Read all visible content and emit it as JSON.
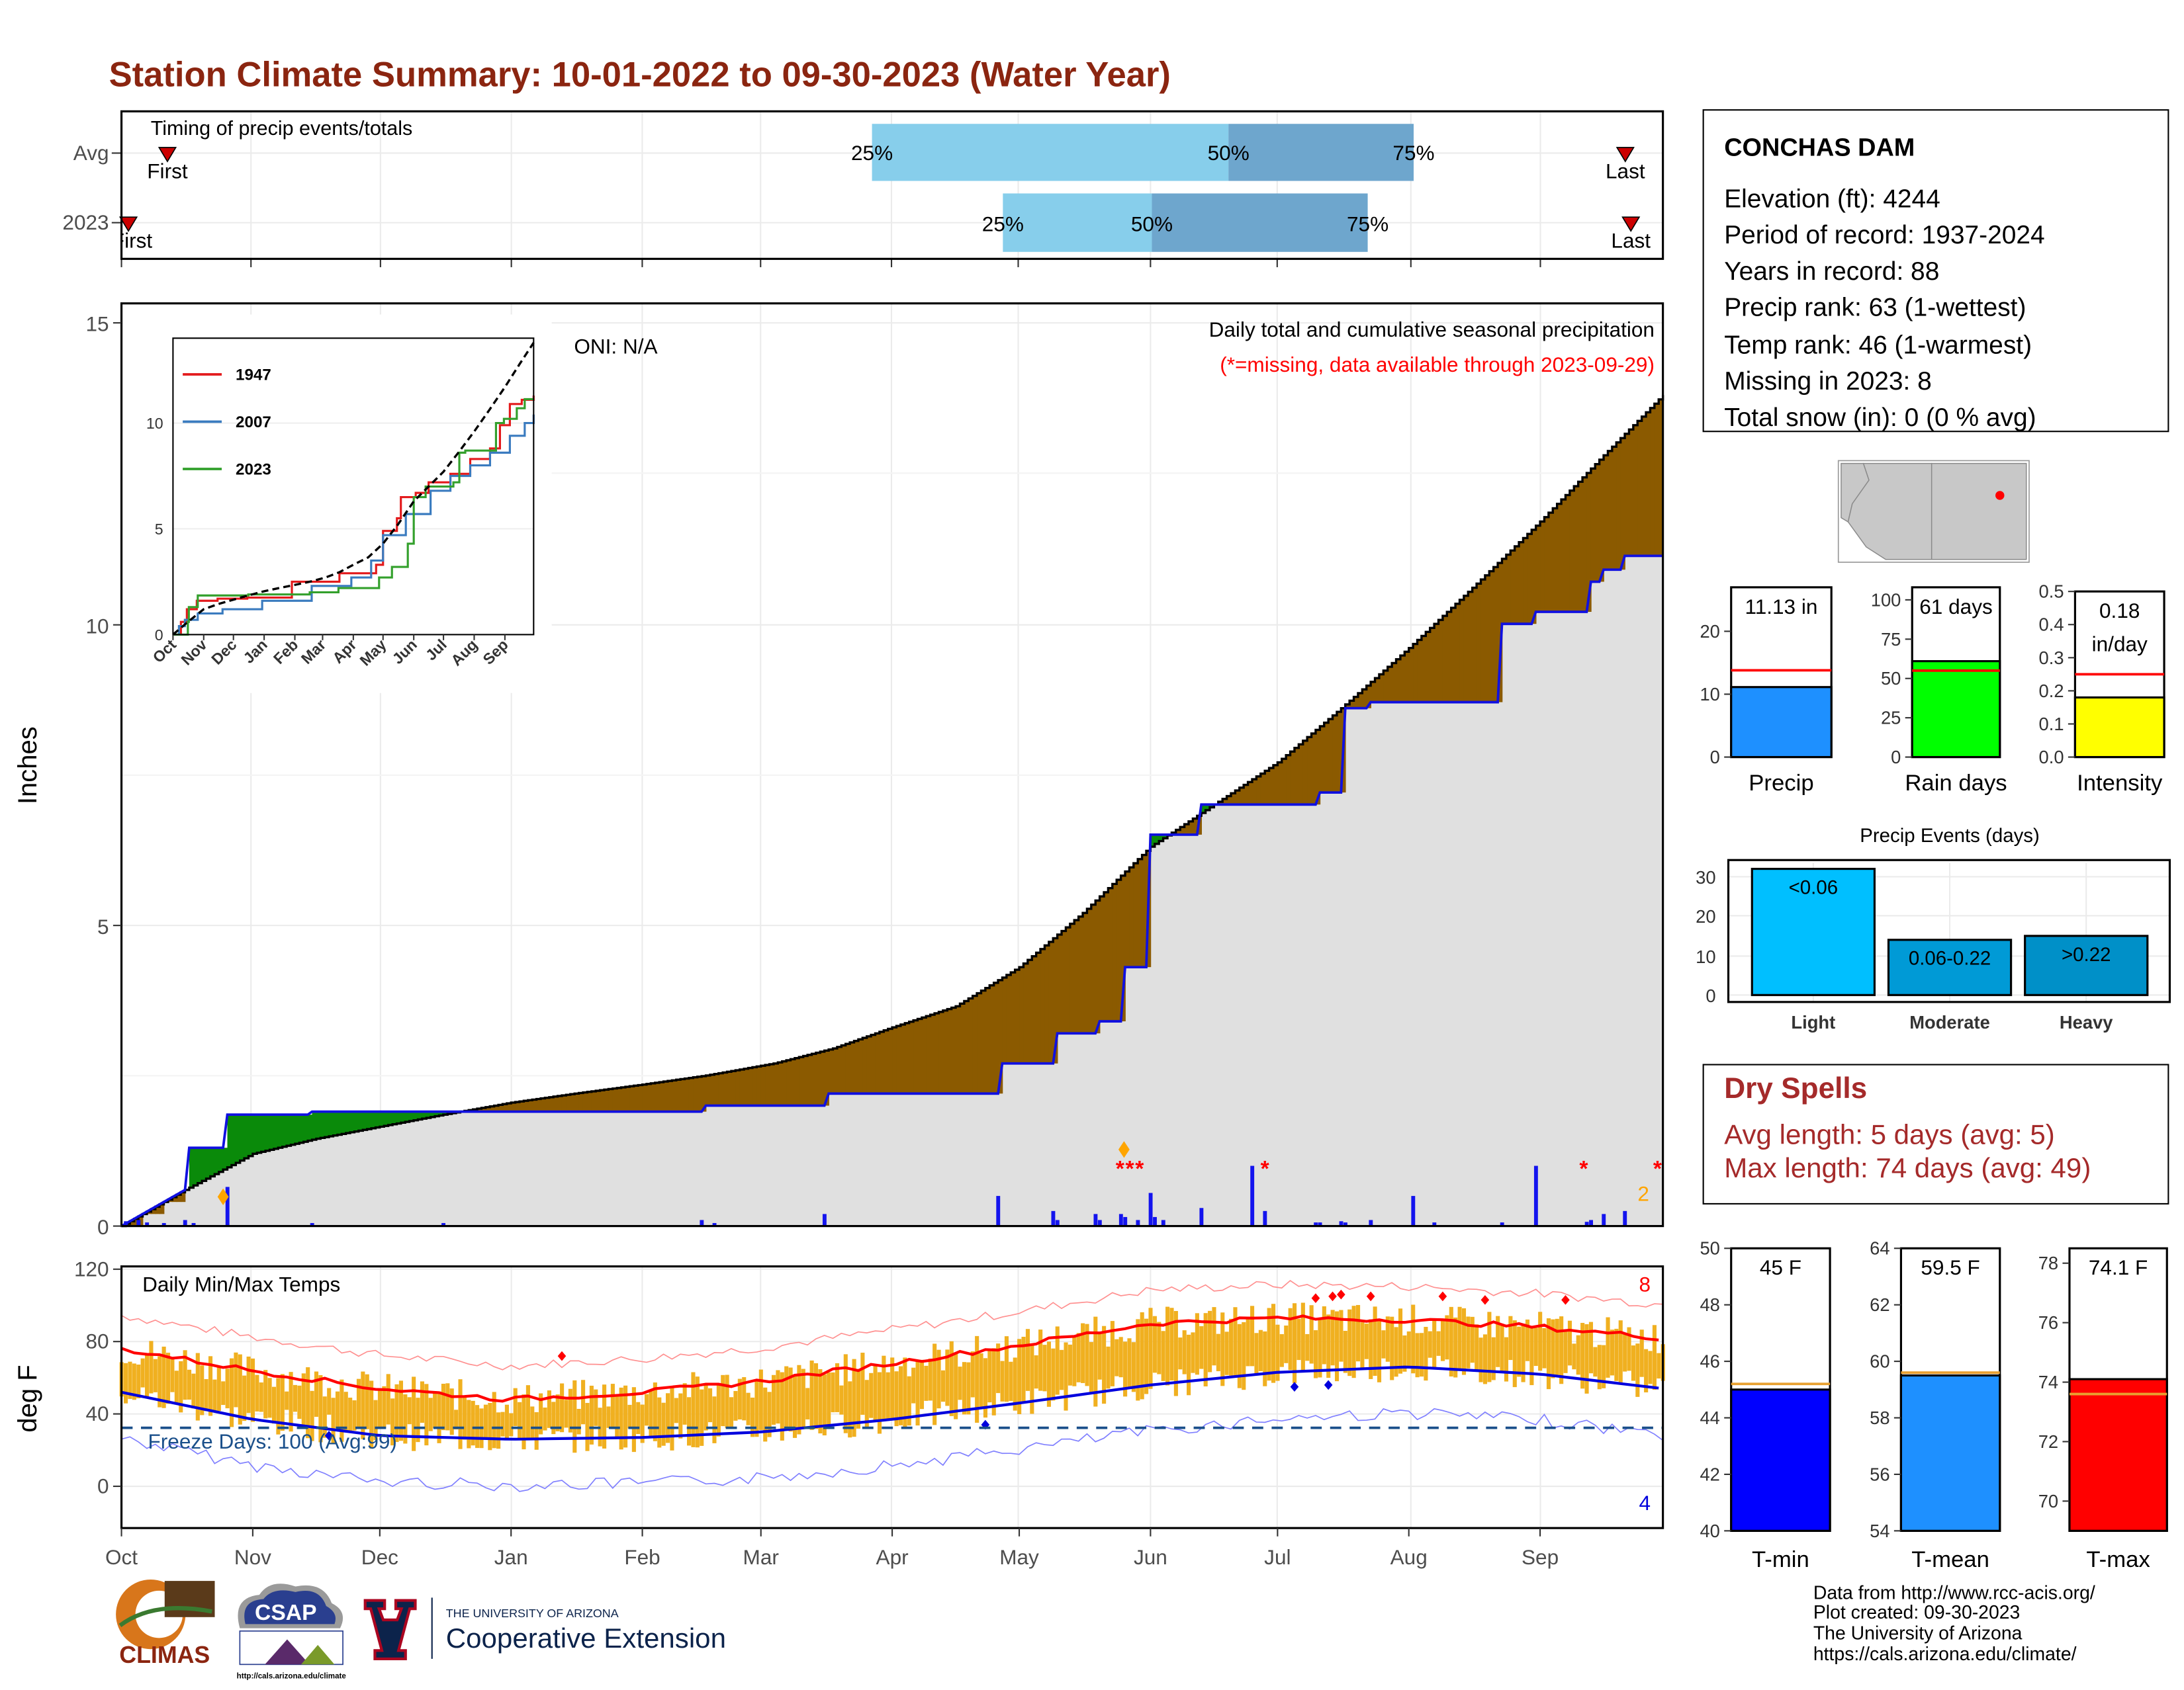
{
  "title": "Station Climate Summary: 10-01-2022 to 09-30-2023 (Water Year)",
  "colors": {
    "title": "#8b2510",
    "avg_cum": "#000000",
    "cum_2023": "#1010e0",
    "deficit_fill": "#8b5a00",
    "surplus_fill": "#0a8a0a",
    "area_fill": "#e0e0e0",
    "precip_bar": "#1414ee",
    "tmax_avg": "#ff0000",
    "tmin_avg": "#0000dd",
    "temp_bar": "#f0b020",
    "freeze_line": "#1a4f8a",
    "light_blue": "#87ceeb",
    "mid_blue": "#6ea6cd"
  },
  "timing_panel": {
    "label": "Timing of precip events/totals",
    "rows": [
      {
        "name": "Avg",
        "first_label": "First",
        "last_label": "Last",
        "p25": "25%",
        "p50": "50%",
        "p75": "75%"
      },
      {
        "name": "2023",
        "first_label": "First",
        "last_label": "Last",
        "p25": "25%",
        "p50": "50%",
        "p75": "75%"
      }
    ]
  },
  "precip_panel": {
    "ylabel": "Inches",
    "oni": "ONI: N/A",
    "note1": "Daily total and cumulative seasonal precipitation",
    "note2": "(*=missing, data available through 2023-09-29)",
    "yticks": [
      "0",
      "5",
      "10",
      "15"
    ],
    "orange_count": "2",
    "inset": {
      "legend": [
        "1947",
        "2007",
        "2023"
      ],
      "legend_colors": [
        "#e31a1c",
        "#3a7bbf",
        "#33a02c"
      ],
      "yticks": [
        "0",
        "5",
        "10"
      ],
      "xticks": [
        "Oct",
        "Nov",
        "Dec",
        "Jan",
        "Feb",
        "Mar",
        "Apr",
        "May",
        "Jun",
        "Jul",
        "Aug",
        "Sep"
      ]
    }
  },
  "temp_panel": {
    "ylabel": "deg F",
    "label": "Daily Min/Max Temps",
    "freeze_label": "Freeze Days: 100 (Avg:99)",
    "record_high_count": "8",
    "record_low_count": "4",
    "yticks": [
      "0",
      "40",
      "80",
      "120"
    ]
  },
  "months": [
    "Oct",
    "Nov",
    "Dec",
    "Jan",
    "Feb",
    "Mar",
    "Apr",
    "May",
    "Jun",
    "Jul",
    "Aug",
    "Sep"
  ],
  "station": {
    "name": "CONCHAS DAM",
    "lines": [
      "Elevation (ft): 4244",
      "Period of record: 1937-2024",
      "Years in record: 88",
      "Precip rank: 63 (1-wettest)",
      "Temp rank: 46 (1-warmest)",
      "Missing in 2023: 8",
      "Total snow (in): 0 (0 % avg)"
    ]
  },
  "summary_bars": [
    {
      "key": "precip",
      "label": "Precip",
      "value_label": "11.13 in",
      "yticks": [
        "0",
        "10",
        "20"
      ],
      "color": "#1e90ff"
    },
    {
      "key": "raindays",
      "label": "Rain days",
      "value_label": "61 days",
      "yticks": [
        "0",
        "25",
        "50",
        "75",
        "100"
      ],
      "color": "#00ff00"
    },
    {
      "key": "intensity",
      "label": "Intensity",
      "value_label_1": "0.18",
      "value_label_2": "in/day",
      "yticks": [
        "0.0",
        "0.1",
        "0.2",
        "0.3",
        "0.4",
        "0.5"
      ],
      "color": "#ffff00"
    }
  ],
  "events": {
    "title": "Precip Events (days)",
    "yticks": [
      "0",
      "10",
      "20",
      "30"
    ],
    "categories": [
      "Light",
      "Moderate",
      "Heavy"
    ],
    "bar_labels": [
      "<0.06",
      "0.06-0.22",
      ">0.22"
    ],
    "colors": [
      "#00bfff",
      "#009ad6",
      "#0090c8"
    ]
  },
  "dry_spells": {
    "title": "Dry Spells",
    "line1": "Avg length: 5 days (avg: 5)",
    "line2": "Max length: 74 days (avg: 49)"
  },
  "temp_bars": [
    {
      "key": "tmin",
      "label": "T-min",
      "value_label": "45 F",
      "yticks": [
        "40",
        "42",
        "44",
        "46",
        "48",
        "50"
      ],
      "color": "#0000ff"
    },
    {
      "key": "tmean",
      "label": "T-mean",
      "value_label": "59.5 F",
      "yticks": [
        "54",
        "56",
        "58",
        "60",
        "62",
        "64"
      ],
      "color": "#1e90ff"
    },
    {
      "key": "tmax",
      "label": "T-max",
      "value_label": "74.1 F",
      "yticks": [
        "70",
        "72",
        "74",
        "76",
        "78"
      ],
      "color": "#ff0000"
    }
  ],
  "footer": {
    "lines": [
      "Data from http://www.rcc-acis.org/",
      "Plot created: 09-30-2023",
      "The University of Arizona",
      "https://cals.arizona.edu/climate/"
    ],
    "logo_climas": "CLIMAS",
    "logo_csap": "CSAP",
    "csap_url": "http://cals.arizona.edu/climate",
    "ua_small": "THE UNIVERSITY OF ARIZONA",
    "ua_big": "Cooperative Extension"
  },
  "chart_data": [
    {
      "type": "area",
      "title": "Daily total and cumulative seasonal precipitation",
      "ylabel": "Inches",
      "ylim": [
        0,
        15
      ],
      "x_unit": "day of water year (Oct 1 = 0)",
      "series": [
        {
          "name": "Avg",
          "x": [
            0,
            15,
            31,
            46,
            61,
            76,
            92,
            107,
            123,
            138,
            154,
            168,
            182,
            197,
            212,
            227,
            243,
            258,
            273,
            288,
            304,
            319,
            335,
            350,
            364
          ],
          "values": [
            0,
            0.6,
            1.2,
            1.45,
            1.65,
            1.85,
            2.05,
            2.2,
            2.35,
            2.5,
            2.7,
            2.95,
            3.3,
            3.65,
            4.3,
            5.2,
            6.3,
            7.0,
            7.7,
            8.6,
            9.6,
            10.6,
            11.7,
            12.8,
            13.8
          ]
        },
        {
          "name": "2023",
          "x": [
            0,
            5,
            10,
            15,
            16,
            24,
            25,
            44,
            45,
            75,
            76,
            137,
            138,
            166,
            167,
            207,
            208,
            220,
            221,
            230,
            231,
            236,
            237,
            242,
            243,
            254,
            255,
            267,
            268,
            282,
            283,
            288,
            289,
            294,
            295,
            325,
            326,
            333,
            334,
            346,
            347,
            349,
            350,
            354,
            355,
            364
          ],
          "values": [
            0,
            0.2,
            0.4,
            0.6,
            1.3,
            1.3,
            1.85,
            1.85,
            1.9,
            1.9,
            1.9,
            1.9,
            2.0,
            2.0,
            2.2,
            2.2,
            2.7,
            2.7,
            3.2,
            3.2,
            3.4,
            3.4,
            4.3,
            4.3,
            6.5,
            6.5,
            7.0,
            7.0,
            7.0,
            7.0,
            7.2,
            7.2,
            8.6,
            8.6,
            8.7,
            8.7,
            10.0,
            10.0,
            10.2,
            10.2,
            10.7,
            10.7,
            10.9,
            10.9,
            11.13,
            11.13
          ]
        }
      ]
    },
    {
      "type": "line",
      "title": "Daily Min/Max Temps",
      "ylabel": "deg F",
      "ylim": [
        -20,
        120
      ],
      "series": [
        {
          "name": "Avg max",
          "x": [
            0,
            31,
            61,
            92,
            123,
            151,
            182,
            212,
            243,
            273,
            304,
            335,
            364
          ],
          "values": [
            76,
            64,
            54,
            48,
            52,
            58,
            68,
            78,
            90,
            93,
            92,
            88,
            82
          ]
        },
        {
          "name": "Avg min",
          "x": [
            0,
            31,
            61,
            92,
            123,
            151,
            182,
            212,
            243,
            273,
            304,
            335,
            364
          ],
          "values": [
            52,
            37,
            28,
            26,
            27,
            30,
            37,
            46,
            56,
            63,
            66,
            62,
            54
          ]
        }
      ]
    },
    {
      "type": "bar",
      "title": "Precip",
      "categories": [
        "Precip"
      ],
      "values": [
        11.13
      ],
      "ylim": [
        0,
        27
      ],
      "reference": 13.8
    },
    {
      "type": "bar",
      "title": "Rain days",
      "categories": [
        "Rain days"
      ],
      "values": [
        61
      ],
      "ylim": [
        0,
        108
      ],
      "reference": 55
    },
    {
      "type": "bar",
      "title": "Intensity",
      "categories": [
        "Intensity"
      ],
      "values": [
        0.18
      ],
      "ylim": [
        0,
        0.5
      ],
      "reference": 0.25
    },
    {
      "type": "bar",
      "title": "Precip Events (days)",
      "categories": [
        "Light",
        "Moderate",
        "Heavy"
      ],
      "values": [
        32,
        14,
        15
      ],
      "ylim": [
        0,
        32
      ]
    },
    {
      "type": "bar",
      "title": "T-min",
      "categories": [
        "T-min"
      ],
      "values": [
        45
      ],
      "ylim": [
        40,
        50
      ],
      "reference": 45.2
    },
    {
      "type": "bar",
      "title": "T-mean",
      "categories": [
        "T-mean"
      ],
      "values": [
        59.5
      ],
      "ylim": [
        54,
        64
      ],
      "reference": 59.6
    },
    {
      "type": "bar",
      "title": "T-max",
      "categories": [
        "T-max"
      ],
      "values": [
        74.1
      ],
      "ylim": [
        69,
        78.5
      ],
      "reference": 73.6
    }
  ]
}
